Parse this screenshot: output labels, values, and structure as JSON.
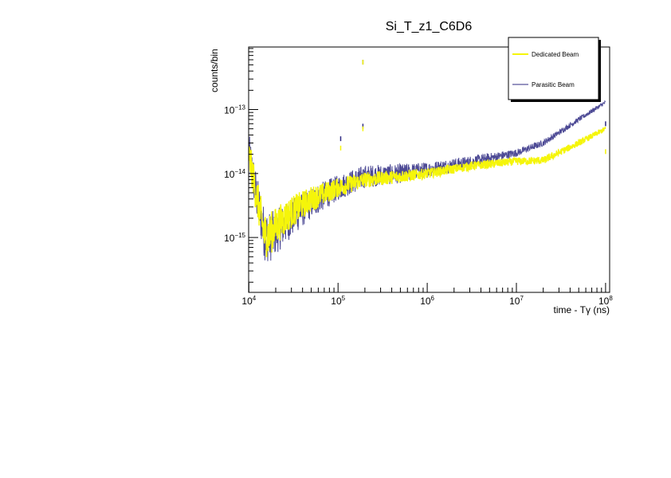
{
  "chart_data": {
    "type": "line",
    "title": "Si_T_z1_C6D6",
    "xlabel": "time - Tγ (ns)",
    "ylabel": "counts/bin",
    "xscale": "log",
    "yscale": "log",
    "xlim": [
      10000,
      100000000
    ],
    "ylim": [
      1.4e-16,
      9.3e-13
    ],
    "grid": false,
    "legend_position": "top-right",
    "x_ticks": [
      {
        "base": "10",
        "exp": "4",
        "value": 10000.0
      },
      {
        "base": "10",
        "exp": "5",
        "value": 100000.0
      },
      {
        "base": "10",
        "exp": "6",
        "value": 1000000.0
      },
      {
        "base": "10",
        "exp": "7",
        "value": 10000000.0
      },
      {
        "base": "10",
        "exp": "8",
        "value": 100000000.0
      }
    ],
    "y_ticks": [
      {
        "base": "10",
        "exp": "−15",
        "value": 1e-15
      },
      {
        "base": "10",
        "exp": "−14",
        "value": 1e-14
      },
      {
        "base": "10",
        "exp": "−13",
        "value": 1e-13
      }
    ],
    "series": [
      {
        "name": "Parasitic Beam",
        "color": "#2e2a82",
        "x": [
          10000,
          12000,
          15000,
          17000,
          20000,
          30000,
          50000,
          100000,
          200000,
          500000,
          1000000,
          3000000,
          10000000,
          20000000,
          50000000,
          100000000
        ],
        "y": [
          2.2e-14,
          5e-15,
          1.1e-15,
          1e-15,
          1.2e-15,
          2e-15,
          3.5e-15,
          6e-15,
          9e-15,
          1e-14,
          1.15e-14,
          1.5e-14,
          2.1e-14,
          3e-14,
          7e-14,
          1.3e-13
        ],
        "noise_log10": [
          0.3,
          0.35,
          0.4,
          0.4,
          0.35,
          0.3,
          0.25,
          0.2,
          0.18,
          0.15,
          0.12,
          0.1,
          0.06,
          0.05,
          0.04,
          0.03
        ],
        "spikes": [
          {
            "x": 107000,
            "y": 3.5e-14
          },
          {
            "x": 190000,
            "y": 5.5e-13
          },
          {
            "x": 190000,
            "y": 5.5e-14
          },
          {
            "x": 100000000,
            "y": 6e-14
          }
        ]
      },
      {
        "name": "Dedicated Beam",
        "color": "#f5f50a",
        "x": [
          10000,
          12000,
          15000,
          17000,
          20000,
          30000,
          50000,
          100000,
          200000,
          500000,
          1000000,
          3000000,
          10000000,
          20000000,
          50000000,
          100000000
        ],
        "y": [
          2e-14,
          5e-15,
          1.1e-15,
          1.1e-15,
          1.5e-15,
          2.5e-15,
          4e-15,
          6e-15,
          8e-15,
          9e-15,
          1e-14,
          1.3e-14,
          1.55e-14,
          1.6e-14,
          3e-14,
          5e-14
        ],
        "noise_log10": [
          0.25,
          0.3,
          0.35,
          0.35,
          0.3,
          0.25,
          0.2,
          0.15,
          0.12,
          0.1,
          0.08,
          0.07,
          0.06,
          0.06,
          0.05,
          0.04
        ],
        "spikes": [
          {
            "x": 107000,
            "y": 2.5e-14
          },
          {
            "x": 190000,
            "y": 5.5e-13
          },
          {
            "x": 190000,
            "y": 5e-14
          },
          {
            "x": 100000000,
            "y": 2.2e-14
          }
        ]
      }
    ]
  }
}
